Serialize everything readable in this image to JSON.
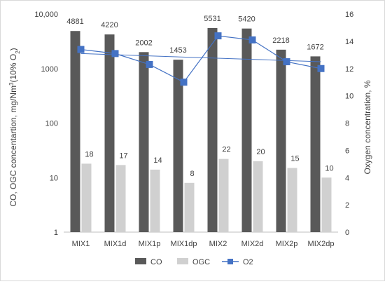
{
  "chart_data": {
    "type": "bar",
    "categories": [
      "MIX1",
      "MIX1d",
      "MIX1p",
      "MIX1dp",
      "MIX2",
      "MIX2d",
      "MIX2p",
      "MIX2dp"
    ],
    "series": [
      {
        "name": "CO",
        "kind": "bar",
        "axis": "left",
        "color": "#595959",
        "values": [
          4881,
          4220,
          2002,
          1453,
          5531,
          5420,
          2218,
          1672
        ]
      },
      {
        "name": "OGC",
        "kind": "bar",
        "axis": "left",
        "color": "#d0d0d0",
        "values": [
          18,
          17,
          14,
          8,
          22,
          20,
          15,
          10
        ]
      },
      {
        "name": "O2",
        "kind": "line",
        "axis": "right",
        "color": "#4472c4",
        "marker": "square",
        "values": [
          13.4,
          13.1,
          12.3,
          11.0,
          14.4,
          14.1,
          12.5,
          12.0
        ]
      }
    ],
    "data_labels": {
      "CO": [
        "4881",
        "4220",
        "2002",
        "1453",
        "5531",
        "5420",
        "2218",
        "1672"
      ],
      "OGC": [
        "18",
        "17",
        "14",
        "8",
        "22",
        "20",
        "15",
        "10"
      ]
    },
    "trendline": {
      "series": "O2",
      "start": 13.1,
      "end": 12.5,
      "color": "#4472c4"
    },
    "left_axis": {
      "label_html": "CO, OGC concentartion, mg/Nm<sup>3</sup>(10% O<sub>2</sub>)",
      "label_text": "CO, OGC concentartion, mg/Nm3(10% O2)",
      "scale": "log",
      "ylim": [
        1,
        10000
      ],
      "ticks": [
        "1",
        "10",
        "100",
        "1000",
        "10,000"
      ]
    },
    "right_axis": {
      "label": "Oxygen concentration, %",
      "ylim": [
        0,
        16
      ],
      "ticks": [
        "0",
        "2",
        "4",
        "6",
        "8",
        "10",
        "12",
        "14",
        "16"
      ]
    },
    "grid": false,
    "legend": {
      "position": "bottom",
      "items": [
        "CO",
        "OGC",
        "O2"
      ]
    }
  }
}
